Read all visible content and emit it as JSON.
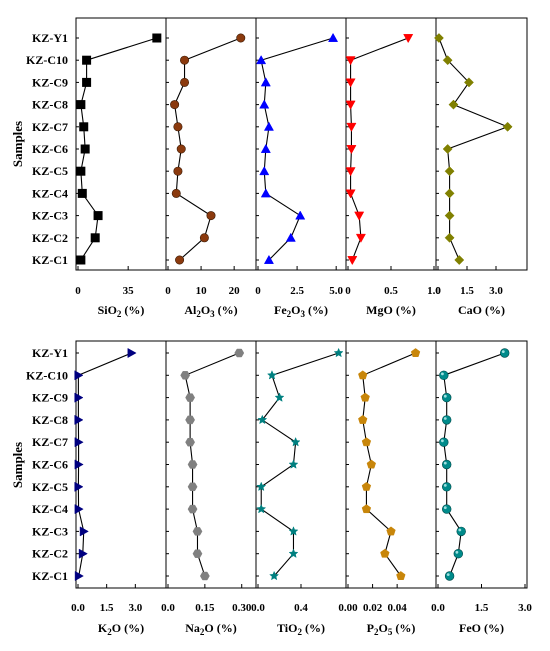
{
  "chart_data": [
    {
      "type": "line",
      "samples": [
        "KZ-Y1",
        "KZ-C10",
        "KZ-C9",
        "KZ-C8",
        "KZ-C7",
        "KZ-C6",
        "KZ-C5",
        "KZ-C4",
        "KZ-C3",
        "KZ-C2",
        "KZ-C1"
      ],
      "ylabel": "Samples",
      "panels": [
        {
          "sub": "SiO",
          "idx": "2",
          "unit": " (%)",
          "color": "#000000",
          "marker": "square",
          "ticks": [
            "0",
            "35"
          ],
          "xlim": [
            0,
            60
          ],
          "tick_values": [
            0,
            35
          ],
          "values": [
            55,
            6,
            6,
            2,
            4,
            5,
            2,
            3,
            14,
            12,
            2
          ]
        },
        {
          "sub": "Al",
          "idx": "2",
          "sub2": "O",
          "idx2": "3",
          "unit": " (%)",
          "color": "#8B3A0E",
          "marker": "circle",
          "ticks": [
            "0",
            "10",
            "20"
          ],
          "xlim": [
            0,
            26
          ],
          "tick_values": [
            0,
            10,
            20
          ],
          "values": [
            22,
            5,
            5,
            2,
            3,
            4,
            3,
            2.5,
            13,
            11,
            3.5
          ]
        },
        {
          "sub": "Fe",
          "idx": "2",
          "sub2": "O",
          "idx2": "3",
          "unit": " (%)",
          "color": "#0000FF",
          "marker": "triangle-up",
          "ticks": [
            "0",
            "2.5",
            "5.0"
          ],
          "xlim": [
            0,
            5.5
          ],
          "tick_values": [
            0,
            2.5,
            5.0
          ],
          "values": [
            4.8,
            0.2,
            0.5,
            0.4,
            0.7,
            0.5,
            0.4,
            0.5,
            2.7,
            2.1,
            0.7
          ]
        },
        {
          "sub": "MgO",
          "unit": " (%)",
          "color": "#FF0000",
          "marker": "triangle-down",
          "ticks": [
            "0",
            "0.5",
            "1.0"
          ],
          "xlim": [
            0,
            1.0
          ],
          "tick_values": [
            0,
            0.5,
            1.0
          ],
          "values": [
            0.7,
            0.03,
            0.03,
            0.03,
            0.04,
            0.04,
            0.03,
            0.03,
            0.13,
            0.15,
            0.05
          ]
        },
        {
          "sub": "CaO",
          "unit": " (%)",
          "color": "#808000",
          "marker": "diamond",
          "ticks": [
            "0",
            "1.5",
            "3.0"
          ],
          "xlim": [
            0,
            4.5
          ],
          "tick_values": [
            0,
            1.5,
            3.0
          ],
          "values": [
            0.05,
            0.5,
            1.6,
            0.8,
            3.6,
            0.5,
            0.6,
            0.6,
            0.6,
            0.6,
            1.1
          ]
        },
        {
          "sub": "K",
          "idx": "2",
          "sub2": "O",
          "unit": " (%)",
          "color": "#000080",
          "marker": "triangle-right",
          "ticks": [
            "0.0",
            "1.5",
            "3.0"
          ],
          "xlim": [
            0,
            4.5
          ],
          "tick_values": [
            0,
            1.5,
            3.0
          ],
          "values": [
            2.8,
            0.02,
            0.02,
            0.02,
            0.03,
            0.03,
            0.02,
            0.03,
            0.3,
            0.25,
            0.04
          ]
        },
        {
          "sub": "Na",
          "idx": "2",
          "sub2": "O",
          "unit": " (%)",
          "color": "#808080",
          "marker": "hexagon",
          "ticks": [
            "0.0",
            "0.15",
            "0.30"
          ],
          "xlim": [
            0,
            0.35
          ],
          "tick_values": [
            0,
            0.15,
            0.3
          ],
          "values": [
            0.29,
            0.07,
            0.09,
            0.09,
            0.09,
            0.1,
            0.1,
            0.1,
            0.12,
            0.12,
            0.15
          ]
        },
        {
          "sub": "TiO",
          "idx": "2",
          "unit": " (%)",
          "color": "#008080",
          "marker": "star",
          "ticks": [
            "0.0",
            "0.4"
          ],
          "xlim": [
            0,
            0.8
          ],
          "tick_values": [
            0,
            0.4
          ],
          "values": [
            0.75,
            0.13,
            0.2,
            0.04,
            0.35,
            0.33,
            0.03,
            0.03,
            0.33,
            0.33,
            0.15
          ]
        },
        {
          "sub": "P",
          "idx": "2",
          "sub2": "O",
          "idx2": "5",
          "unit": " (%)",
          "color": "#C8860A",
          "marker": "pentagon",
          "ticks": [
            "0.00",
            "0.02",
            "0.04"
          ],
          "xlim": [
            0,
            0.07
          ],
          "tick_values": [
            0,
            0.02,
            0.04
          ],
          "values": [
            0.055,
            0.012,
            0.014,
            0.012,
            0.015,
            0.019,
            0.015,
            0.015,
            0.035,
            0.03,
            0.043
          ]
        },
        {
          "sub": "FeO",
          "unit": " (%)",
          "color": "#008B8B",
          "marker": "ball",
          "ticks": [
            "0.0",
            "1.5",
            "3.0"
          ],
          "xlim": [
            0,
            3.0
          ],
          "tick_values": [
            0,
            1.5,
            3.0
          ],
          "values": [
            2.3,
            0.2,
            0.3,
            0.3,
            0.2,
            0.3,
            0.3,
            0.3,
            0.8,
            0.7,
            0.4
          ]
        }
      ]
    }
  ]
}
